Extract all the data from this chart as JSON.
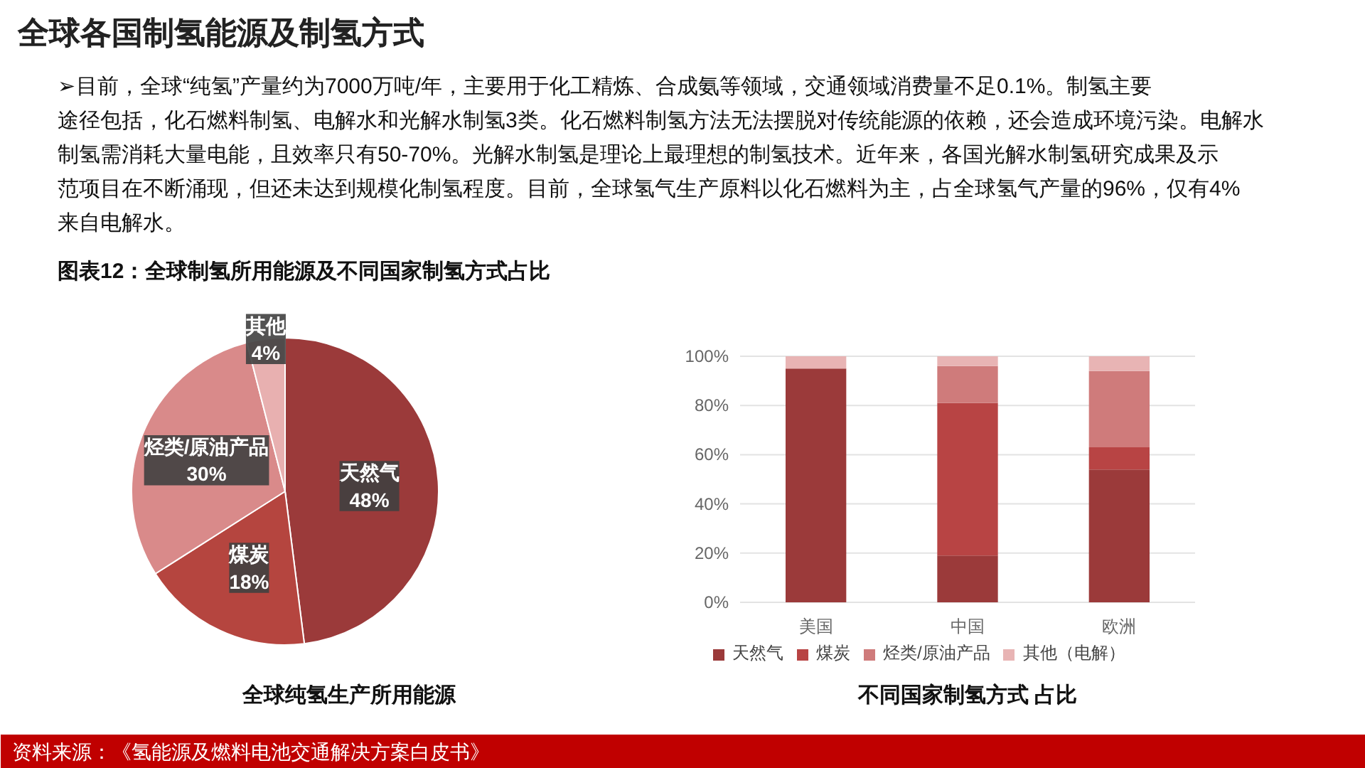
{
  "chart_data": [
    {
      "type": "other",
      "title": "全球各国制氢能源及制氢方式",
      "annotations": [
        "➢目前，全球“纯氢”产量约为7000万吨/年，主要用于化工精炼、合成氨等领域，交通领域消费量不足0.1%。制氢主要途径包括，化石燃料制氢、电解水和光解水制氢3类。化石燃料制氢方法无法摆脱对传统能源的依赖，还会造成环境污染。电解水制氢需消耗大量电能，且效率只有50-70%。光解水制氢是理论上最理想的制氢技术。近年来，各国光解水制氢研究成果及示范项目在不断涌现，但还未达到规模化制氢程度。目前，全球氢气生产原料以化石燃料为主，占全球氢气产量的96%，仅有4%来自电解水。",
        "图表12：全球制氢所用能源及不同国家制氢方式占比",
        "资料来源：《氢能源及燃料电池交通解决方案白皮书》"
      ]
    },
    {
      "type": "pie",
      "title": "全球纯氢生产所用能源",
      "categories": [
        "天然气",
        "煤炭",
        "烃类/原油产品",
        "其他"
      ],
      "values": [
        48,
        18,
        30,
        4
      ],
      "colors": [
        "#9b3a3a",
        "#b5453f",
        "#d98a8a",
        "#e8b0b0"
      ],
      "value_labels": [
        "48%",
        "18%",
        "30%",
        "4%"
      ]
    },
    {
      "type": "bar",
      "title": "不同国家制氢方式 占比",
      "categories": [
        "美国",
        "中国",
        "欧洲"
      ],
      "stacked": true,
      "series": [
        {
          "name": "天然气",
          "color": "#9b3a3a",
          "values": [
            95,
            19,
            54
          ]
        },
        {
          "name": "煤炭",
          "color": "#b84444",
          "values": [
            0,
            62,
            9
          ]
        },
        {
          "name": "烃类/原油产品",
          "color": "#cf7b7b",
          "values": [
            0,
            15,
            31
          ]
        },
        {
          "name": "其他（电解）",
          "color": "#e8b4b4",
          "values": [
            5,
            4,
            6
          ]
        }
      ],
      "ylim": [
        0,
        100
      ],
      "yticks": [
        {
          "value": 0,
          "label": "0%"
        },
        {
          "value": 20,
          "label": "20%"
        },
        {
          "value": 40,
          "label": "40%"
        },
        {
          "value": 60,
          "label": "60%"
        },
        {
          "value": 80,
          "label": "80%"
        },
        {
          "value": 100,
          "label": "100%"
        }
      ],
      "grid": "y",
      "legend": "bottom"
    }
  ]
}
